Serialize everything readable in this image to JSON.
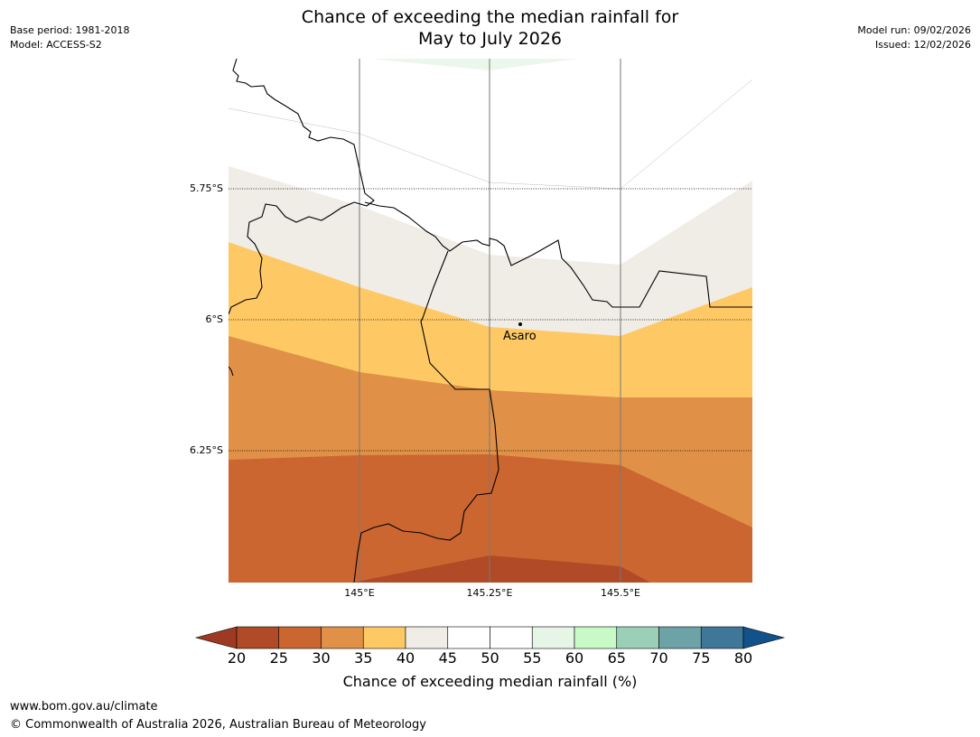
{
  "title": {
    "line1": "Chance of exceeding the median rainfall for",
    "line2": "May to July 2026"
  },
  "meta": {
    "base_period": "Base period: 1981-2018",
    "model": "Model: ACCESS-S2",
    "model_run": "Model run: 09/02/2026",
    "issued": "Issued: 12/02/2026"
  },
  "map": {
    "lat_labels": [
      "5.75°S",
      "6°S",
      "6.25°S"
    ],
    "lon_labels": [
      "145°E",
      "145.25°E",
      "145.5°E"
    ],
    "place": {
      "name": "Asaro"
    }
  },
  "legend": {
    "ticks": [
      "20",
      "25",
      "30",
      "35",
      "40",
      "45",
      "50",
      "55",
      "60",
      "65",
      "70",
      "75",
      "80"
    ],
    "label": "Chance of exceeding median rainfall (%)",
    "colors": [
      "#9e3a22",
      "#b04a27",
      "#cc6631",
      "#e09147",
      "#fec965",
      "#f0ece6",
      "#ffffff",
      "#ffffff",
      "#e6f5e6",
      "#c8fac8",
      "#9bd0b8",
      "#6da3a6",
      "#3f7799",
      "#13518a"
    ]
  },
  "footer": {
    "url": "www.bom.gov.au/climate",
    "copyright": "© Commonwealth of Australia 2026, Australian Bureau of Meteorology"
  }
}
